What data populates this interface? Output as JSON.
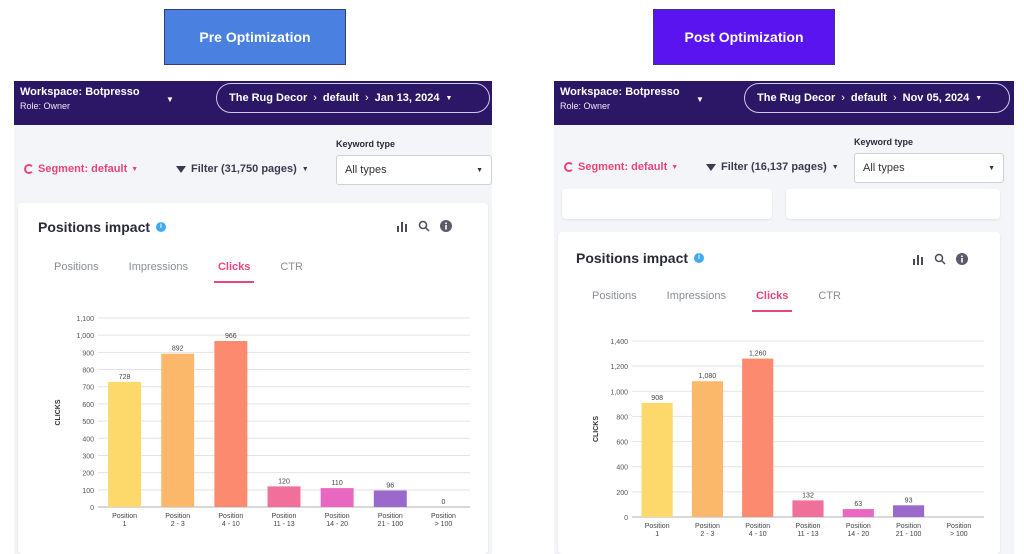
{
  "labels": {
    "pre": "Pre Optimization",
    "post": "Post  Optimization",
    "pre_color": "#4a80e0",
    "post_color": "#5a14f0"
  },
  "panels": [
    {
      "workspace": "Workspace: Botpresso",
      "role": "Role: Owner",
      "breadcrumb": {
        "site": "The Rug Decor",
        "segment": "default",
        "date": "Jan 13, 2024"
      },
      "segment_label": "Segment: default",
      "filter_label": "Filter (31,750 pages)",
      "keyword_type_label": "Keyword type",
      "keyword_type_value": "All types",
      "card_title": "Positions impact",
      "tabs": [
        "Positions",
        "Impressions",
        "Clicks",
        "CTR"
      ],
      "active_tab": "Clicks"
    },
    {
      "workspace": "Workspace: Botpresso",
      "role": "Role: Owner",
      "breadcrumb": {
        "site": "The Rug Decor",
        "segment": "default",
        "date": "Nov 05, 2024"
      },
      "segment_label": "Segment: default",
      "filter_label": "Filter (16,137 pages)",
      "keyword_type_label": "Keyword type",
      "keyword_type_value": "All types",
      "card_title": "Positions impact",
      "tabs": [
        "Positions",
        "Impressions",
        "Clicks",
        "CTR"
      ],
      "active_tab": "Clicks"
    }
  ],
  "chart_data": [
    {
      "type": "bar",
      "ylabel": "CLICKS",
      "categories": [
        [
          "Position",
          "1"
        ],
        [
          "Position",
          "2 - 3"
        ],
        [
          "Position",
          "4 - 10"
        ],
        [
          "Position",
          "11 - 13"
        ],
        [
          "Position",
          "14 - 20"
        ],
        [
          "Position",
          "21 - 100"
        ],
        [
          "Position",
          "> 100"
        ]
      ],
      "values": [
        728,
        892,
        966,
        120,
        110,
        96,
        0
      ],
      "ylim": [
        0,
        1100
      ],
      "yticks": [
        0,
        100,
        200,
        300,
        400,
        500,
        600,
        700,
        800,
        900,
        1000,
        1100
      ],
      "ytick_labels": [
        "0",
        "100",
        "200",
        "300",
        "400",
        "500",
        "600",
        "700",
        "800",
        "900",
        "1,000",
        "1,100"
      ],
      "colors": [
        "#fcd96a",
        "#fcb86a",
        "#fc8a6e",
        "#f0709a",
        "#e867c0",
        "#9b68cc",
        "#9b68cc"
      ],
      "grid": true
    },
    {
      "type": "bar",
      "ylabel": "CLICKS",
      "categories": [
        [
          "Position",
          "1"
        ],
        [
          "Position",
          "2 - 3"
        ],
        [
          "Position",
          "4 - 10"
        ],
        [
          "Position",
          "11 - 13"
        ],
        [
          "Position",
          "14 - 20"
        ],
        [
          "Position",
          "21 - 100"
        ],
        [
          "Position",
          "> 100"
        ]
      ],
      "values": [
        908,
        1080,
        1260,
        132,
        63,
        93,
        null
      ],
      "value_labels": [
        "908",
        "1,080",
        "1,260",
        "132",
        "63",
        "93",
        ""
      ],
      "ylim": [
        0,
        1400
      ],
      "yticks": [
        0,
        200,
        400,
        600,
        800,
        1000,
        1200,
        1400
      ],
      "ytick_labels": [
        "0",
        "200",
        "400",
        "600",
        "800",
        "1,000",
        "1,200",
        "1,400"
      ],
      "colors": [
        "#fcd96a",
        "#fcb86a",
        "#fc8a6e",
        "#f0709a",
        "#e867c0",
        "#9b68cc",
        "#9b68cc"
      ],
      "grid": true
    }
  ]
}
